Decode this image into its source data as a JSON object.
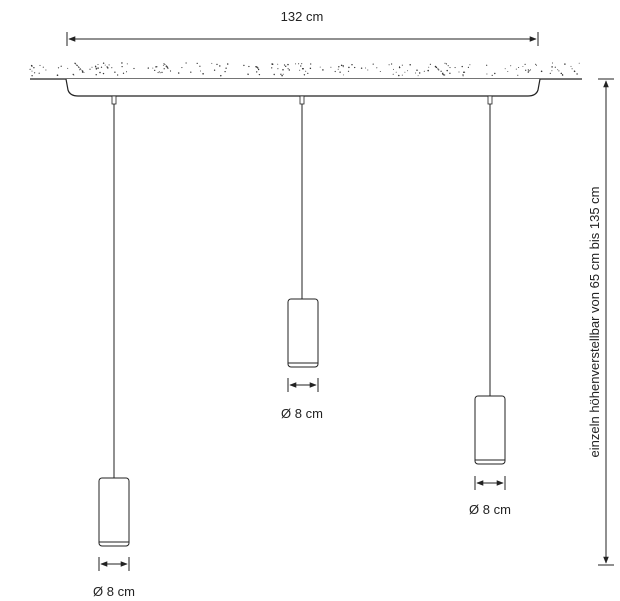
{
  "dimensions": {
    "canopy_width": "132 cm",
    "height_range": "einzeln höhenverstellbar von 65 cm bis 135 cm"
  },
  "pendants": [
    {
      "diameter": "Ø 8 cm"
    },
    {
      "diameter": "Ø 8 cm"
    },
    {
      "diameter": "Ø 8 cm"
    }
  ],
  "colors": {
    "line": "#222222",
    "background": "#ffffff"
  }
}
